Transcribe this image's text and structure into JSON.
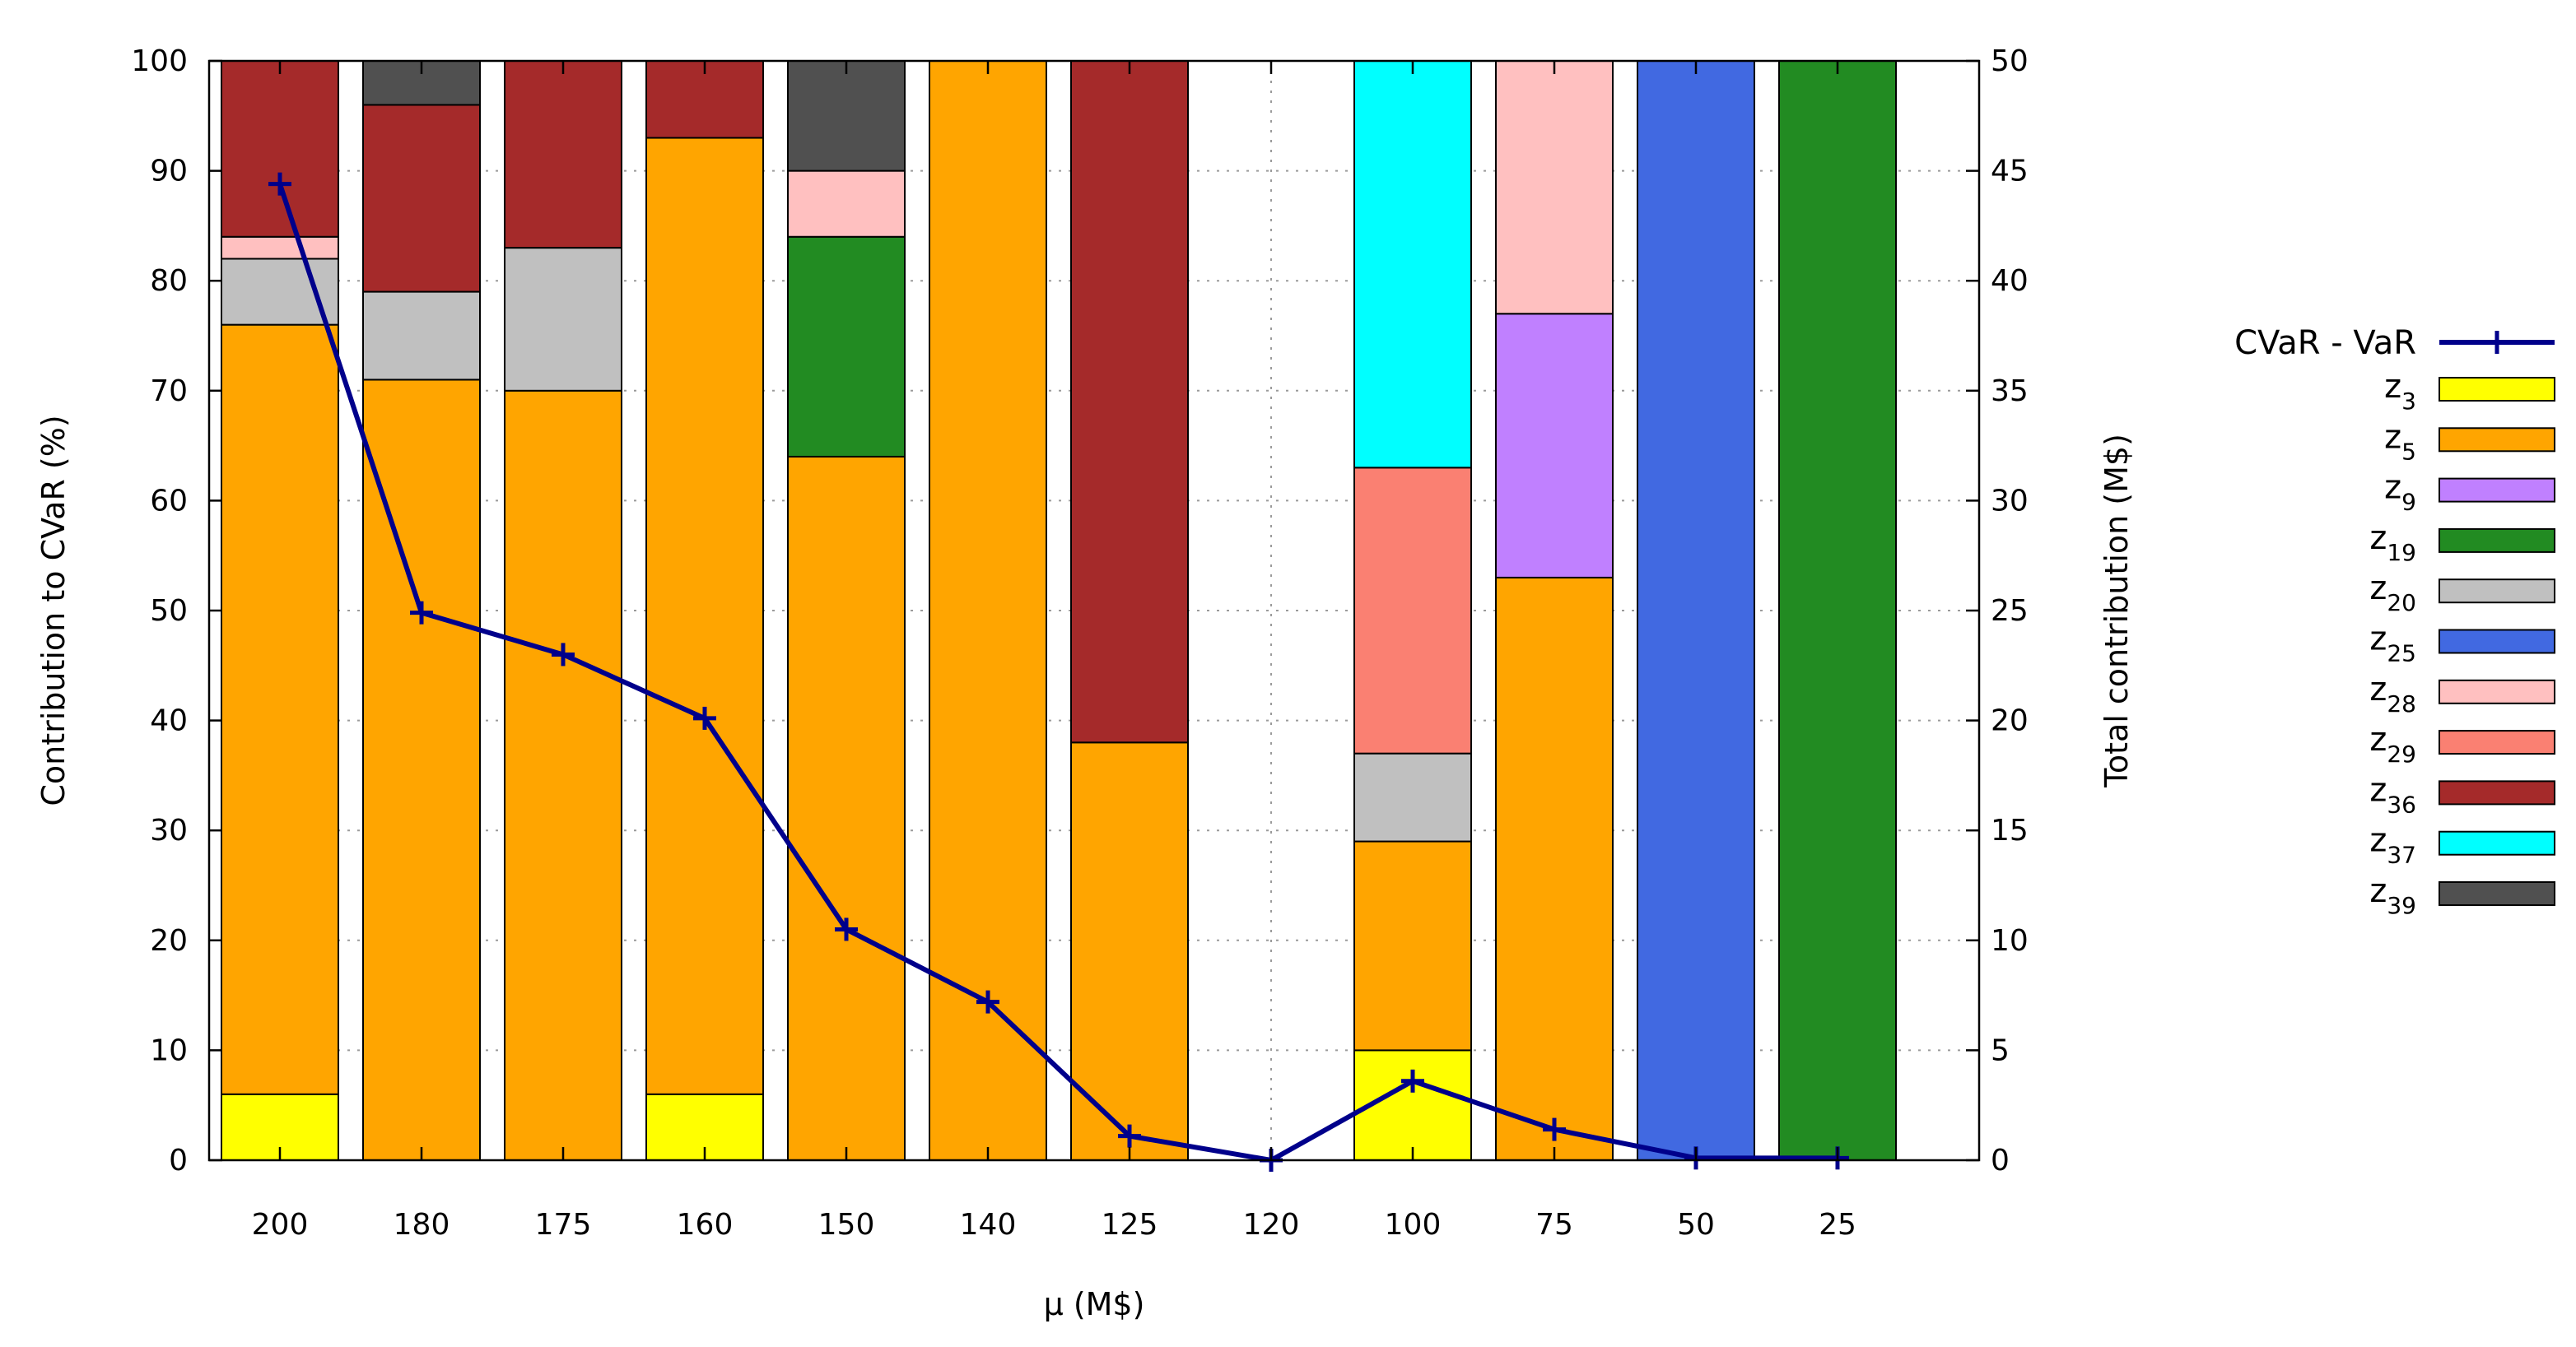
{
  "chart_data": {
    "type": "bar",
    "stacked": true,
    "xlabel": "μ (M$)",
    "ylabel": "Contribution to CVaR (%)",
    "y2label": "Total contribution (M$)",
    "categories": [
      "200",
      "180",
      "175",
      "160",
      "150",
      "140",
      "125",
      "120",
      "100",
      "75",
      "50",
      "25"
    ],
    "ylim": [
      0,
      100
    ],
    "yticks": [
      "0",
      "10",
      "20",
      "30",
      "40",
      "50",
      "60",
      "70",
      "80",
      "90",
      "100"
    ],
    "y2lim": [
      0,
      50
    ],
    "y2ticks": [
      "0",
      "5",
      "10",
      "15",
      "20",
      "25",
      "30",
      "35",
      "40",
      "45",
      "50"
    ],
    "grid": true,
    "legend_position": "right",
    "series": [
      {
        "name": "z",
        "sub": "3",
        "color": "#ffff00",
        "values": [
          6,
          0,
          0,
          6,
          0,
          0,
          0,
          0,
          10,
          0,
          0,
          0
        ]
      },
      {
        "name": "z",
        "sub": "5",
        "color": "#ffa500",
        "values": [
          70,
          71,
          70,
          87,
          64,
          100,
          38,
          0,
          19,
          53,
          0,
          0
        ]
      },
      {
        "name": "z",
        "sub": "9",
        "color": "#c080ff",
        "values": [
          0,
          0,
          0,
          0,
          0,
          0,
          0,
          0,
          0,
          24,
          0,
          0
        ]
      },
      {
        "name": "z",
        "sub": "19",
        "color": "#228b22",
        "values": [
          0,
          0,
          0,
          0,
          20,
          0,
          0,
          0,
          0,
          0,
          0,
          100
        ]
      },
      {
        "name": "z",
        "sub": "20",
        "color": "#c0c0c0",
        "values": [
          6,
          8,
          13,
          0,
          0,
          0,
          0,
          0,
          8,
          0,
          0,
          0
        ]
      },
      {
        "name": "z",
        "sub": "25",
        "color": "#4169e1",
        "values": [
          0,
          0,
          0,
          0,
          0,
          0,
          0,
          0,
          0,
          0,
          100,
          0
        ]
      },
      {
        "name": "z",
        "sub": "28",
        "color": "#ffc0c0",
        "values": [
          2,
          0,
          0,
          0,
          6,
          0,
          0,
          0,
          0,
          23,
          0,
          0
        ]
      },
      {
        "name": "z",
        "sub": "29",
        "color": "#fa8072",
        "values": [
          0,
          0,
          0,
          0,
          0,
          0,
          0,
          0,
          26,
          0,
          0,
          0
        ]
      },
      {
        "name": "z",
        "sub": "36",
        "color": "#a52a2a",
        "values": [
          16,
          17,
          17,
          7,
          0,
          0,
          62,
          0,
          0,
          0,
          0,
          0
        ]
      },
      {
        "name": "z",
        "sub": "37",
        "color": "#00ffff",
        "values": [
          0,
          0,
          0,
          0,
          0,
          0,
          0,
          0,
          37,
          0,
          0,
          0
        ]
      },
      {
        "name": "z",
        "sub": "39",
        "color": "#505050",
        "values": [
          0,
          4,
          0,
          0,
          10,
          0,
          0,
          0,
          0,
          0,
          0,
          0
        ]
      }
    ],
    "line": {
      "name": "CVaR - VaR",
      "axis": "y2",
      "color": "#00008b",
      "values": [
        44.4,
        24.9,
        23.0,
        20.1,
        10.5,
        7.2,
        1.1,
        0.0,
        3.6,
        1.4,
        0.1,
        0.1
      ]
    }
  }
}
